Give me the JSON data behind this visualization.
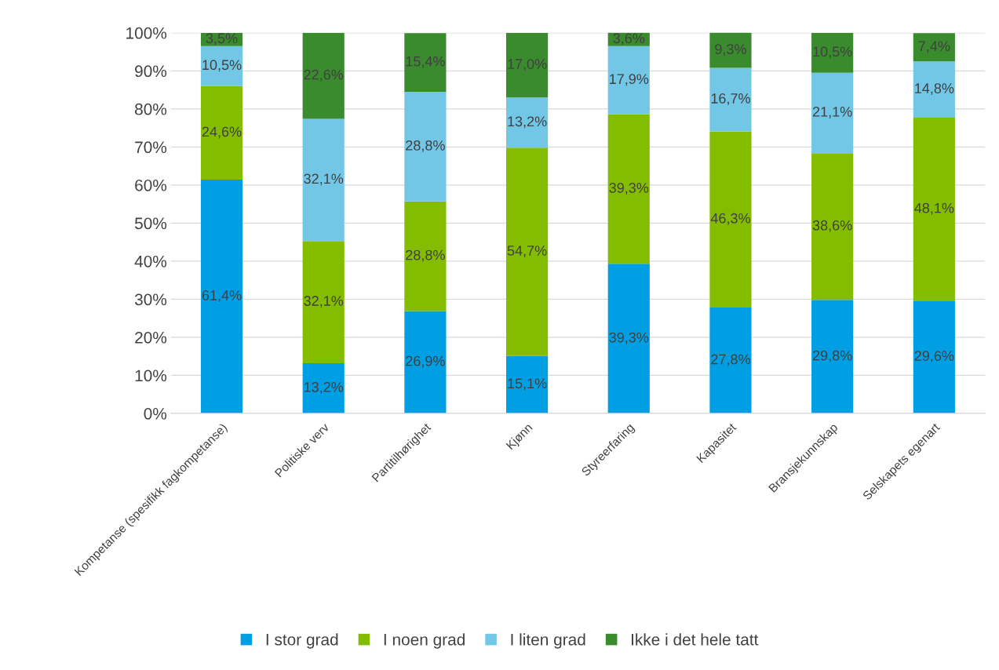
{
  "chart_data": {
    "type": "bar",
    "stacked": true,
    "categories": [
      "Kompetanse (spesifikk fagkompetanse)",
      "Politiske verv",
      "Partitilhørighet",
      "Kjønn",
      "Styreerfaring",
      "Kapasitet",
      "Bransjekunnskap",
      "Selskapets egenart"
    ],
    "series": [
      {
        "name": "I stor grad",
        "color": "#009fe3",
        "values": [
          61.4,
          13.2,
          26.9,
          15.1,
          39.3,
          27.8,
          29.8,
          29.6
        ],
        "value_labels": [
          "61,4%",
          "13,2%",
          "26,9%",
          "15,1%",
          "39,3%",
          "27,8%",
          "29,8%",
          "29,6%"
        ]
      },
      {
        "name": "I noen grad",
        "color": "#84bd00",
        "values": [
          24.6,
          32.1,
          28.8,
          54.7,
          39.3,
          46.3,
          38.6,
          48.1
        ],
        "value_labels": [
          "24,6%",
          "32,1%",
          "28,8%",
          "54,7%",
          "39,3%",
          "46,3%",
          "38,6%",
          "48,1%"
        ]
      },
      {
        "name": "I liten grad",
        "color": "#72c7e7",
        "values": [
          10.5,
          32.1,
          28.8,
          13.2,
          17.9,
          16.7,
          21.1,
          14.8
        ],
        "value_labels": [
          "10,5%",
          "32,1%",
          "28,8%",
          "13,2%",
          "17,9%",
          "16,7%",
          "21,1%",
          "14,8%"
        ]
      },
      {
        "name": "Ikke i det hele tatt",
        "color": "#3a8a2e",
        "values": [
          3.5,
          22.6,
          15.4,
          17.0,
          3.6,
          9.3,
          10.5,
          7.4
        ],
        "value_labels": [
          "3,5%",
          "22,6%",
          "15,4%",
          "17,0%",
          "3,6%",
          "9,3%",
          "10,5%",
          "7,4%"
        ]
      }
    ],
    "ylim": [
      0,
      100
    ],
    "yticks": [
      {
        "value": 0,
        "label": "0%"
      },
      {
        "value": 10,
        "label": "10%"
      },
      {
        "value": 20,
        "label": "20%"
      },
      {
        "value": 30,
        "label": "30%"
      },
      {
        "value": 40,
        "label": "40%"
      },
      {
        "value": 50,
        "label": "50%"
      },
      {
        "value": 60,
        "label": "60%"
      },
      {
        "value": 70,
        "label": "70%"
      },
      {
        "value": 80,
        "label": "80%"
      },
      {
        "value": 90,
        "label": "90%"
      },
      {
        "value": 100,
        "label": "100%"
      }
    ],
    "grid": "y",
    "legend": "bottom"
  }
}
